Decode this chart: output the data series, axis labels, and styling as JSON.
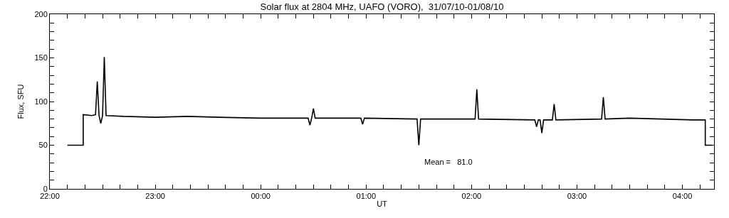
{
  "chart_data": {
    "type": "line",
    "title": "Solar flux at 2804 MHz, UAFO (VORO),  31/07/10-01/08/10",
    "xlabel": "UT",
    "ylabel": "Flux, SFU",
    "annotations": [
      "Mean =   81.0"
    ],
    "x": [
      "--07-31T22:10",
      "--07-31T22:19",
      "--07-31T22:19",
      "--07-31T22:24",
      "--07-31T22:26",
      "--07-31T22:27",
      "--07-31T22:28",
      "--07-31T22:29",
      "--07-31T22:30",
      "--07-31T22:31",
      "--07-31T22:32",
      "--07-31T22:42",
      "--07-31T23:00",
      "--07-31T23:18",
      "--07-31T23:36",
      "--08-01T00:00",
      "--08-01T00:27",
      "--08-01T00:28",
      "--08-01T00:29",
      "--08-01T00:30",
      "--08-01T00:31",
      "--08-01T00:57",
      "--08-01T00:58",
      "--08-01T00:59",
      "--08-01T01:29",
      "--08-01T01:30",
      "--08-01T01:31",
      "--08-01T02:02",
      "--08-01T02:03",
      "--08-01T02:04",
      "--08-01T02:36",
      "--08-01T02:37",
      "--08-01T02:38",
      "--08-01T02:39",
      "--08-01T02:40",
      "--08-01T02:41",
      "--08-01T02:46",
      "--08-01T02:47",
      "--08-01T02:48",
      "--08-01T03:14",
      "--08-01T03:15",
      "--08-01T03:16",
      "--08-01T03:30",
      "--08-01T03:48",
      "--08-01T04:06",
      "--08-01T04:13",
      "--08-01T04:13",
      "--08-01T04:17"
    ],
    "series": [
      {
        "color": "#000000",
        "values": [
          50,
          50,
          85,
          84,
          85,
          123,
          84,
          75,
          84,
          151,
          84,
          83,
          82,
          83,
          82,
          81,
          81,
          73,
          81,
          92,
          81,
          81,
          74,
          81,
          80,
          50,
          80,
          80,
          114,
          80,
          79,
          71,
          79,
          79,
          64,
          79,
          79,
          97,
          79,
          80,
          105,
          80,
          81,
          80,
          79,
          79,
          50,
          50
        ]
      }
    ],
    "xlim": [
      "--07-31T22:00",
      "--08-01T04:18"
    ],
    "xticks": [
      {
        "value": "--07-31T22:00",
        "label": "22:00"
      },
      {
        "value": "--07-31T22:10",
        "label": null
      },
      {
        "value": "--07-31T22:20",
        "label": null
      },
      {
        "value": "--07-31T22:30",
        "label": null
      },
      {
        "value": "--07-31T22:40",
        "label": null
      },
      {
        "value": "--07-31T22:50",
        "label": null
      },
      {
        "value": "--07-31T23:00",
        "label": "23:00"
      },
      {
        "value": "--07-31T23:10",
        "label": null
      },
      {
        "value": "--07-31T23:20",
        "label": null
      },
      {
        "value": "--07-31T23:30",
        "label": null
      },
      {
        "value": "--07-31T23:40",
        "label": null
      },
      {
        "value": "--07-31T23:50",
        "label": null
      },
      {
        "value": "--08-01T00:00",
        "label": "00:00"
      },
      {
        "value": "--08-01T00:10",
        "label": null
      },
      {
        "value": "--08-01T00:20",
        "label": null
      },
      {
        "value": "--08-01T00:30",
        "label": null
      },
      {
        "value": "--08-01T00:40",
        "label": null
      },
      {
        "value": "--08-01T00:50",
        "label": null
      },
      {
        "value": "--08-01T01:00",
        "label": "01:00"
      },
      {
        "value": "--08-01T01:10",
        "label": null
      },
      {
        "value": "--08-01T01:20",
        "label": null
      },
      {
        "value": "--08-01T01:30",
        "label": null
      },
      {
        "value": "--08-01T01:40",
        "label": null
      },
      {
        "value": "--08-01T01:50",
        "label": null
      },
      {
        "value": "--08-01T02:00",
        "label": "02:00"
      },
      {
        "value": "--08-01T02:10",
        "label": null
      },
      {
        "value": "--08-01T02:20",
        "label": null
      },
      {
        "value": "--08-01T02:30",
        "label": null
      },
      {
        "value": "--08-01T02:40",
        "label": null
      },
      {
        "value": "--08-01T02:50",
        "label": null
      },
      {
        "value": "--08-01T03:00",
        "label": "03:00"
      },
      {
        "value": "--08-01T03:10",
        "label": null
      },
      {
        "value": "--08-01T03:20",
        "label": null
      },
      {
        "value": "--08-01T03:30",
        "label": null
      },
      {
        "value": "--08-01T03:40",
        "label": null
      },
      {
        "value": "--08-01T03:50",
        "label": null
      },
      {
        "value": "--08-01T04:00",
        "label": "04:00"
      },
      {
        "value": "--08-01T04:10",
        "label": null
      }
    ],
    "ylim": [
      0,
      200
    ],
    "yticks": [
      0,
      {
        "value": 10,
        "label": null
      },
      {
        "value": 20,
        "label": null
      },
      {
        "value": 30,
        "label": null
      },
      {
        "value": 40,
        "label": null
      },
      50,
      {
        "value": 60,
        "label": null
      },
      {
        "value": 70,
        "label": null
      },
      {
        "value": 80,
        "label": null
      },
      {
        "value": 90,
        "label": null
      },
      100,
      {
        "value": 110,
        "label": null
      },
      {
        "value": 120,
        "label": null
      },
      {
        "value": 130,
        "label": null
      },
      {
        "value": 140,
        "label": null
      },
      150,
      {
        "value": 160,
        "label": null
      },
      {
        "value": 170,
        "label": null
      },
      {
        "value": 180,
        "label": null
      },
      {
        "value": 190,
        "label": null
      },
      200
    ],
    "marker": "none",
    "line_style": "solid"
  }
}
